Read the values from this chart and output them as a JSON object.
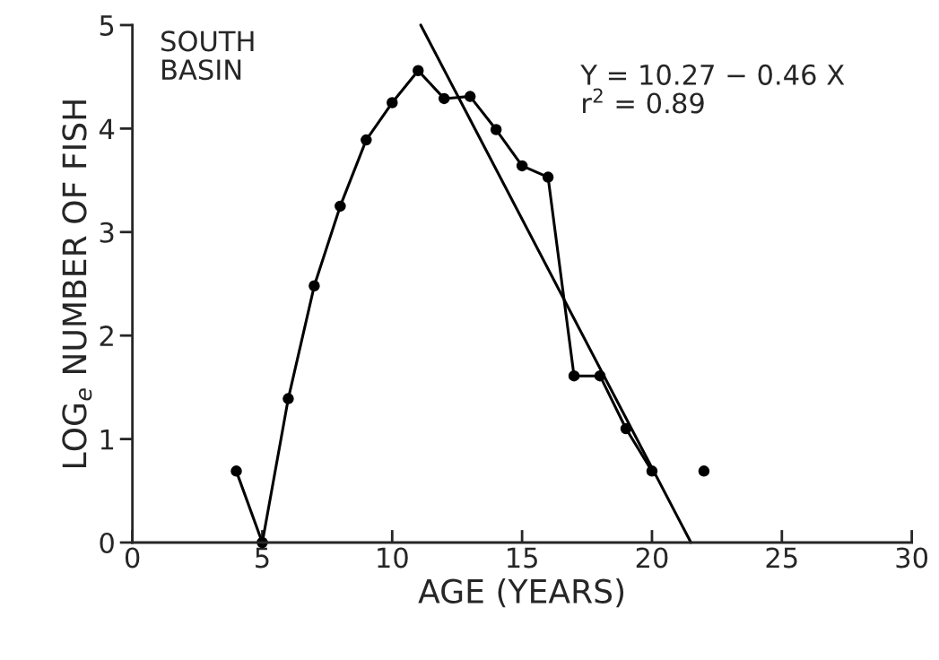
{
  "chart_data": {
    "type": "line",
    "xlabel": "AGE (YEARS)",
    "ylabel": "LOG$_{e}$ NUMBER OF FISH",
    "xlim": [
      0,
      30
    ],
    "xticks": [
      0,
      5,
      10,
      15,
      20,
      25,
      30
    ],
    "ylim": [
      0,
      5
    ],
    "yticks": [
      0,
      1,
      2,
      3,
      4,
      5
    ],
    "grid": false,
    "legend": false,
    "series": [
      {
        "marker": "circle",
        "color": "#000000",
        "x": [
          4,
          5,
          6,
          7,
          8,
          9,
          10,
          11,
          12,
          13,
          14,
          15,
          16,
          17,
          18,
          19,
          20
        ],
        "values": [
          0.69,
          0.0,
          1.39,
          2.48,
          3.25,
          3.89,
          4.25,
          4.56,
          4.29,
          4.31,
          3.99,
          3.64,
          3.53,
          1.61,
          1.61,
          1.1,
          0.69
        ]
      },
      {
        "type": "scatter",
        "marker": "circle",
        "color": "#000000",
        "x": [
          22
        ],
        "values": [
          0.69
        ]
      },
      {
        "marker": "none",
        "color": "#000000",
        "x": [
          11.1,
          21.5
        ],
        "values": [
          5.0,
          0.0
        ]
      }
    ],
    "annotations": [
      "SOUTH\nBASIN",
      "Y = 10.27 − 0.46 X\nr$^{2}$ = 0.89"
    ]
  }
}
